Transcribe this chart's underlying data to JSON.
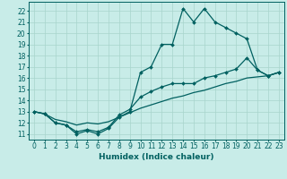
{
  "xlabel": "Humidex (Indice chaleur)",
  "x_ticks": [
    0,
    1,
    2,
    3,
    4,
    5,
    6,
    7,
    8,
    9,
    10,
    11,
    12,
    13,
    14,
    15,
    16,
    17,
    18,
    19,
    20,
    21,
    22,
    23
  ],
  "ylim": [
    10.5,
    22.8
  ],
  "xlim": [
    -0.5,
    23.5
  ],
  "yticks": [
    11,
    12,
    13,
    14,
    15,
    16,
    17,
    18,
    19,
    20,
    21,
    22
  ],
  "line1_x": [
    0,
    1,
    2,
    3,
    4,
    5,
    6,
    7,
    8,
    9,
    10,
    11,
    12,
    13,
    14,
    15,
    16,
    17,
    18,
    19,
    20,
    21,
    22,
    23
  ],
  "line1_y": [
    13.0,
    12.8,
    12.0,
    11.8,
    11.0,
    11.3,
    11.0,
    11.5,
    12.5,
    13.0,
    16.5,
    17.0,
    19.0,
    19.0,
    22.2,
    21.0,
    22.2,
    21.0,
    20.5,
    20.0,
    19.5,
    16.7,
    16.2,
    16.5
  ],
  "line2_x": [
    0,
    1,
    2,
    3,
    4,
    5,
    6,
    7,
    8,
    9,
    10,
    11,
    12,
    13,
    14,
    15,
    16,
    17,
    18,
    19,
    20,
    21,
    22,
    23
  ],
  "line2_y": [
    13.0,
    12.8,
    12.0,
    11.8,
    11.2,
    11.4,
    11.2,
    11.6,
    12.7,
    13.2,
    14.3,
    14.8,
    15.2,
    15.5,
    15.5,
    15.5,
    16.0,
    16.2,
    16.5,
    16.8,
    17.8,
    16.7,
    16.2,
    16.5
  ],
  "line3_x": [
    0,
    1,
    2,
    3,
    4,
    5,
    6,
    7,
    8,
    9,
    10,
    11,
    12,
    13,
    14,
    15,
    16,
    17,
    18,
    19,
    20,
    21,
    22,
    23
  ],
  "line3_y": [
    13.0,
    12.8,
    12.3,
    12.1,
    11.8,
    12.0,
    11.9,
    12.1,
    12.5,
    12.9,
    13.3,
    13.6,
    13.9,
    14.2,
    14.4,
    14.7,
    14.9,
    15.2,
    15.5,
    15.7,
    16.0,
    16.1,
    16.2,
    16.5
  ],
  "bg_color": "#c8ece8",
  "grid_color": "#a8d4cc",
  "line_color": "#006060",
  "marker": "D",
  "markersize": 2,
  "linewidth": 0.9,
  "label_fontsize": 6.5,
  "tick_fontsize": 5.5
}
